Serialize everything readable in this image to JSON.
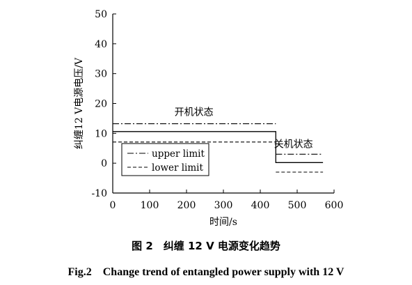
{
  "chart_data": {
    "type": "line",
    "xlabel": "时间/s",
    "ylabel": "纠缠12 V电源电压/V",
    "xlim": [
      0,
      600
    ],
    "ylim": [
      -10,
      50
    ],
    "xticks": [
      0,
      100,
      200,
      300,
      400,
      500,
      600
    ],
    "yticks": [
      -10,
      0,
      10,
      20,
      30,
      40,
      50
    ],
    "grid": false,
    "legend_position": "bottom-left",
    "series": [
      {
        "name": "",
        "style": "solid",
        "x": [
          0,
          442,
          442,
          570
        ],
        "y": [
          10.6,
          10.6,
          0.2,
          0.2
        ]
      },
      {
        "name": "upper limit",
        "style": "dash-dot",
        "segments": [
          {
            "x": [
              0,
              442
            ],
            "y": [
              13.2,
              13.2
            ]
          },
          {
            "x": [
              442,
              570
            ],
            "y": [
              3.0,
              3.0
            ]
          }
        ]
      },
      {
        "name": "lower limit",
        "style": "dashed",
        "segments": [
          {
            "x": [
              0,
              442
            ],
            "y": [
              7.1,
              7.1
            ]
          },
          {
            "x": [
              442,
              570
            ],
            "y": [
              -3.0,
              -3.0
            ]
          }
        ]
      }
    ],
    "annotations": [
      {
        "text": "开机状态",
        "x": 220,
        "y": 16
      },
      {
        "text": "关机状态",
        "x": 490,
        "y": 5.3
      }
    ]
  },
  "caption": {
    "cn": "图 2　纠缠 12 V 电源变化趋势",
    "en": "Fig.2　Change trend of entangled power supply with 12 V"
  }
}
